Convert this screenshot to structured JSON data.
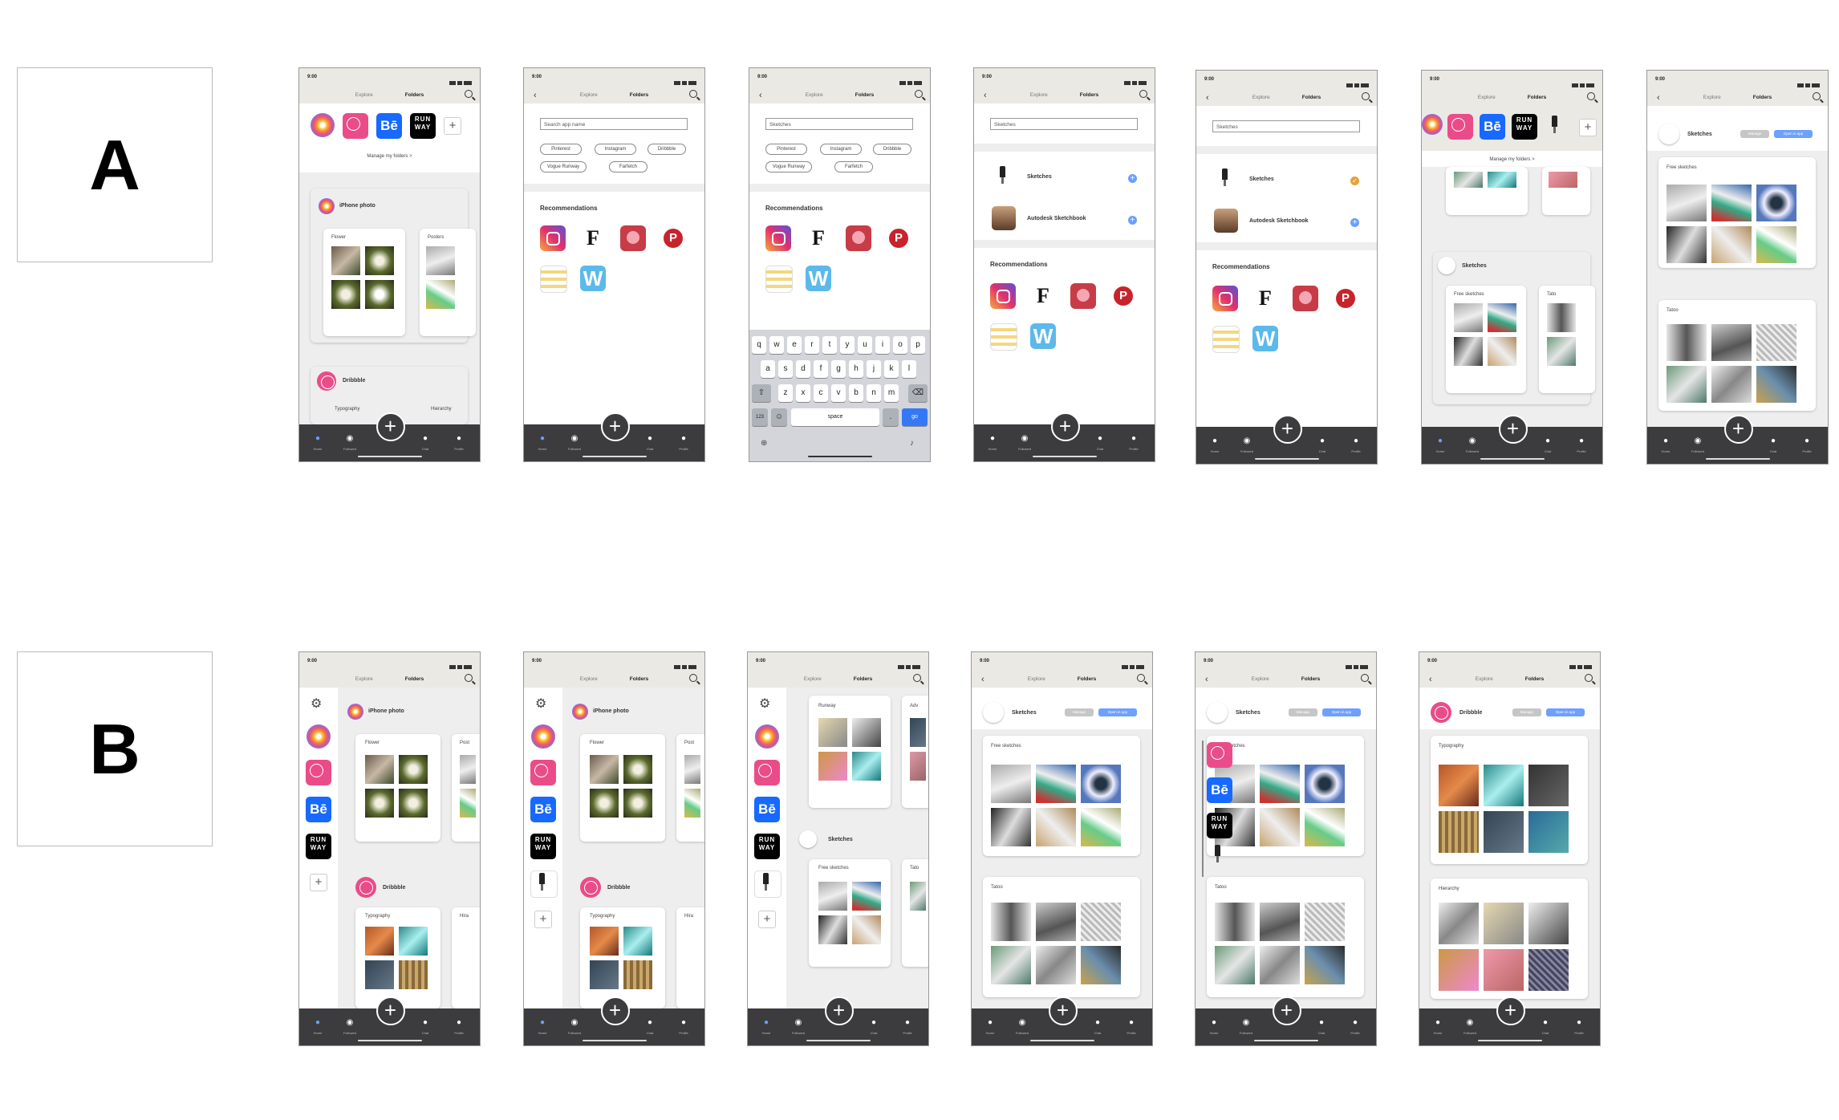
{
  "labels": {
    "a": "A",
    "b": "B"
  },
  "status": {
    "time": "9:00"
  },
  "tabs": {
    "explore": "Explore",
    "folders": "Folders"
  },
  "nav": {
    "home": "Home",
    "followed": "Followed",
    "chat": "Chat",
    "profile": "Profile"
  },
  "manage_folders": "Manage my folders  >",
  "search": {
    "placeholder": "Search app name",
    "query": "Sketches"
  },
  "chips": [
    "Pinterest",
    "Instagram",
    "Dribbble",
    "Vogue Runway",
    "Farfetch"
  ],
  "recommendations": "Recommendations",
  "results": {
    "sketches": "Sketches",
    "autodesk": "Autodesk Sketchbook"
  },
  "folders": {
    "iphone": "iPhone photo",
    "flower": "Flower",
    "posters": "Posters",
    "post": "Post",
    "dribbble": "Dribbble",
    "typography": "Typography",
    "hierarchy": "Hierarchy",
    "hira": "Hira",
    "sketches": "Sketches",
    "free_sketches": "Free sketches",
    "tatoo": "Tatoo",
    "tato": "Tato",
    "runway": "Runway",
    "adv": "Adv"
  },
  "buttons": {
    "manage": "Manage",
    "open": "Open in app"
  },
  "keyboard": {
    "row1": [
      "q",
      "w",
      "e",
      "r",
      "t",
      "y",
      "u",
      "i",
      "o",
      "p"
    ],
    "row2": [
      "a",
      "s",
      "d",
      "f",
      "g",
      "h",
      "j",
      "k",
      "l"
    ],
    "row3": [
      "z",
      "x",
      "c",
      "v",
      "b",
      "n",
      "m"
    ],
    "num": "123",
    "space": "space",
    "dot": ".",
    "go": "go"
  },
  "app_tiles": {
    "behance": "Bē",
    "runway": "RUN WAY"
  }
}
